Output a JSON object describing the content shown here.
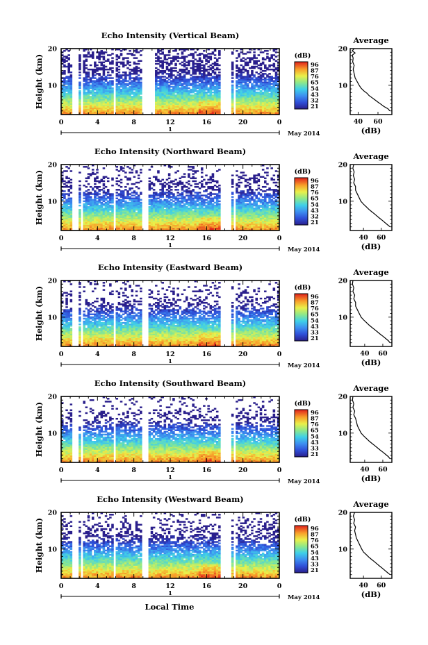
{
  "chart_data": [
    {
      "type": "heatmap",
      "title": "Echo Intensity (Vertical Beam)",
      "ylabel": "Height (km)",
      "ylim": [
        2,
        20
      ],
      "yticks": [
        10,
        20
      ],
      "xticks": [
        "0",
        "4",
        "8",
        "12",
        "16",
        "20",
        "0"
      ],
      "xlim": [
        0,
        24
      ],
      "date_marker": "1",
      "date_caption": "May 2014",
      "colorbar": {
        "title": "(dB)",
        "labels": [
          "96",
          "87",
          "76",
          "65",
          "54",
          "43",
          "32",
          "21"
        ],
        "range": [
          21,
          96
        ]
      },
      "gaps": [
        [
          1.1,
          1.9
        ],
        [
          2.2,
          2.5
        ],
        [
          5.8,
          6.1
        ],
        [
          8.9,
          10.2
        ],
        [
          17.6,
          18.6
        ],
        [
          18.9,
          19.3
        ]
      ],
      "profile": {
        "title": "Average",
        "xlabel": "(dB)",
        "xticks": [
          "40",
          "60"
        ],
        "xlim": [
          32,
          74
        ],
        "points": [
          [
            72,
            3
          ],
          [
            70,
            3.6
          ],
          [
            66,
            4.2
          ],
          [
            63,
            4.8
          ],
          [
            60,
            5.4
          ],
          [
            57,
            6
          ],
          [
            54,
            6.6
          ],
          [
            51,
            7.2
          ],
          [
            49,
            7.8
          ],
          [
            46,
            8.4
          ],
          [
            43,
            9.2
          ],
          [
            41,
            10
          ],
          [
            39,
            11
          ],
          [
            37,
            12
          ],
          [
            36,
            13.2
          ],
          [
            35,
            14.4
          ],
          [
            36,
            15.4
          ],
          [
            34.5,
            16.4
          ],
          [
            35,
            17.4
          ],
          [
            34,
            18.2
          ],
          [
            37,
            18.8
          ],
          [
            34,
            19.4
          ],
          [
            36,
            20
          ]
        ]
      }
    },
    {
      "type": "heatmap",
      "title": "Echo Intensity (Northward Beam)",
      "ylabel": "Height (km)",
      "ylim": [
        2,
        20
      ],
      "yticks": [
        10,
        20
      ],
      "xticks": [
        "0",
        "4",
        "8",
        "12",
        "16",
        "20",
        "0"
      ],
      "xlim": [
        0,
        24
      ],
      "date_marker": "1",
      "date_caption": "May 2014",
      "colorbar": {
        "title": "(dB)",
        "labels": [
          "96",
          "87",
          "76",
          "65",
          "54",
          "43",
          "32",
          "21"
        ],
        "range": [
          21,
          96
        ]
      },
      "gaps": [
        [
          1.1,
          1.9
        ],
        [
          2.2,
          2.5
        ],
        [
          5.8,
          6.1
        ],
        [
          8.9,
          9.6
        ],
        [
          17.6,
          18.6
        ],
        [
          18.9,
          19.3
        ]
      ],
      "profile": {
        "title": "Average",
        "xlabel": "(dB)",
        "xticks": [
          "40",
          "60"
        ],
        "xlim": [
          25,
          72
        ],
        "points": [
          [
            70,
            3
          ],
          [
            67,
            3.6
          ],
          [
            64,
            4.2
          ],
          [
            61,
            4.8
          ],
          [
            58,
            5.4
          ],
          [
            55,
            6
          ],
          [
            52,
            6.6
          ],
          [
            49,
            7.2
          ],
          [
            46,
            7.8
          ],
          [
            43,
            8.5
          ],
          [
            40,
            9.2
          ],
          [
            37,
            10
          ],
          [
            35,
            11
          ],
          [
            33,
            12
          ],
          [
            31,
            13
          ],
          [
            31,
            14
          ],
          [
            29,
            15
          ],
          [
            30,
            16
          ],
          [
            28.5,
            17
          ],
          [
            29.5,
            18
          ],
          [
            28,
            19
          ],
          [
            29,
            20
          ]
        ]
      }
    },
    {
      "type": "heatmap",
      "title": "Echo Intensity (Eastward Beam)",
      "ylabel": "Height (km)",
      "ylim": [
        2,
        20
      ],
      "yticks": [
        10,
        20
      ],
      "xticks": [
        "0",
        "4",
        "8",
        "12",
        "16",
        "20",
        "0"
      ],
      "xlim": [
        0,
        24
      ],
      "date_marker": "1",
      "date_caption": "May 2014",
      "colorbar": {
        "title": "(dB)",
        "labels": [
          "96",
          "87",
          "76",
          "65",
          "54",
          "43",
          "33",
          "21"
        ],
        "range": [
          21,
          96
        ]
      },
      "gaps": [
        [
          1.1,
          1.9
        ],
        [
          2.2,
          2.5
        ],
        [
          5.8,
          6.1
        ],
        [
          8.9,
          9.6
        ],
        [
          17.6,
          18.6
        ],
        [
          18.9,
          19.3
        ]
      ],
      "profile": {
        "title": "Average",
        "xlabel": "(dB)",
        "xticks": [
          "40",
          "60"
        ],
        "xlim": [
          24,
          70
        ],
        "points": [
          [
            68,
            3
          ],
          [
            66,
            3.6
          ],
          [
            63,
            4.2
          ],
          [
            60,
            4.8
          ],
          [
            57,
            5.4
          ],
          [
            54,
            6
          ],
          [
            51,
            6.6
          ],
          [
            48,
            7.2
          ],
          [
            45,
            7.8
          ],
          [
            42,
            8.5
          ],
          [
            39,
            9.2
          ],
          [
            36,
            10
          ],
          [
            34,
            11
          ],
          [
            32,
            12
          ],
          [
            30,
            13
          ],
          [
            30,
            14
          ],
          [
            28,
            15
          ],
          [
            29,
            16
          ],
          [
            27,
            17
          ],
          [
            28,
            18
          ],
          [
            26.5,
            19
          ],
          [
            27,
            20
          ]
        ]
      }
    },
    {
      "type": "heatmap",
      "title": "Echo Intensity (Southward Beam)",
      "ylabel": "Height (km)",
      "ylim": [
        2,
        20
      ],
      "yticks": [
        10,
        20
      ],
      "xticks": [
        "0",
        "4",
        "8",
        "12",
        "16",
        "20",
        "0"
      ],
      "xlim": [
        0,
        24
      ],
      "date_marker": "1",
      "date_caption": "May 2014",
      "colorbar": {
        "title": "(dB)",
        "labels": [
          "96",
          "87",
          "76",
          "65",
          "54",
          "43",
          "33",
          "21"
        ],
        "range": [
          21,
          96
        ]
      },
      "gaps": [
        [
          1.1,
          1.9
        ],
        [
          2.2,
          2.5
        ],
        [
          5.8,
          6.1
        ],
        [
          8.9,
          9.6
        ],
        [
          17.6,
          18.6
        ],
        [
          18.9,
          19.3
        ]
      ],
      "profile": {
        "title": "Average",
        "xlabel": "(dB)",
        "xticks": [
          "40",
          "60"
        ],
        "xlim": [
          24,
          70
        ],
        "points": [
          [
            68,
            3
          ],
          [
            66,
            3.6
          ],
          [
            63,
            4.2
          ],
          [
            60,
            4.8
          ],
          [
            57,
            5.4
          ],
          [
            54,
            6
          ],
          [
            51,
            6.6
          ],
          [
            48,
            7.2
          ],
          [
            45,
            7.8
          ],
          [
            42,
            8.5
          ],
          [
            39,
            9.2
          ],
          [
            36,
            10
          ],
          [
            34,
            11
          ],
          [
            32,
            12
          ],
          [
            31,
            13
          ],
          [
            30,
            14
          ],
          [
            28,
            15
          ],
          [
            29,
            16
          ],
          [
            27,
            17
          ],
          [
            28,
            18
          ],
          [
            26.5,
            19
          ],
          [
            27,
            20
          ]
        ]
      }
    },
    {
      "type": "heatmap",
      "title": "Echo Intensity (Westward Beam)",
      "ylabel": "Height (km)",
      "ylim": [
        2,
        20
      ],
      "yticks": [
        10,
        20
      ],
      "xticks": [
        "0",
        "4",
        "8",
        "12",
        "16",
        "20",
        "0"
      ],
      "xlim": [
        0,
        24
      ],
      "date_marker": "1",
      "date_caption": "May 2014",
      "colorbar": {
        "title": "(dB)",
        "labels": [
          "96",
          "87",
          "76",
          "65",
          "54",
          "43",
          "33",
          "21"
        ],
        "range": [
          21,
          96
        ]
      },
      "gaps": [
        [
          1.1,
          1.9
        ],
        [
          2.2,
          2.5
        ],
        [
          5.8,
          6.1
        ],
        [
          8.9,
          9.6
        ],
        [
          17.6,
          18.6
        ],
        [
          18.9,
          19.3
        ]
      ],
      "profile": {
        "title": "Average",
        "xlabel": "(dB)",
        "xticks": [
          "40",
          "60"
        ],
        "xlim": [
          25,
          72
        ],
        "points": [
          [
            70,
            3
          ],
          [
            67,
            3.6
          ],
          [
            64,
            4.2
          ],
          [
            61,
            4.8
          ],
          [
            58,
            5.4
          ],
          [
            55,
            6
          ],
          [
            52,
            6.6
          ],
          [
            49,
            7.2
          ],
          [
            46,
            7.8
          ],
          [
            43,
            8.5
          ],
          [
            40,
            9.2
          ],
          [
            38,
            10
          ],
          [
            36,
            11
          ],
          [
            34,
            12
          ],
          [
            32,
            13
          ],
          [
            31,
            14
          ],
          [
            30,
            15
          ],
          [
            31,
            16
          ],
          [
            29,
            17
          ],
          [
            30,
            18
          ],
          [
            28.5,
            19
          ],
          [
            30,
            20
          ]
        ]
      }
    }
  ],
  "footer": {
    "xlabel": "Local Time"
  }
}
